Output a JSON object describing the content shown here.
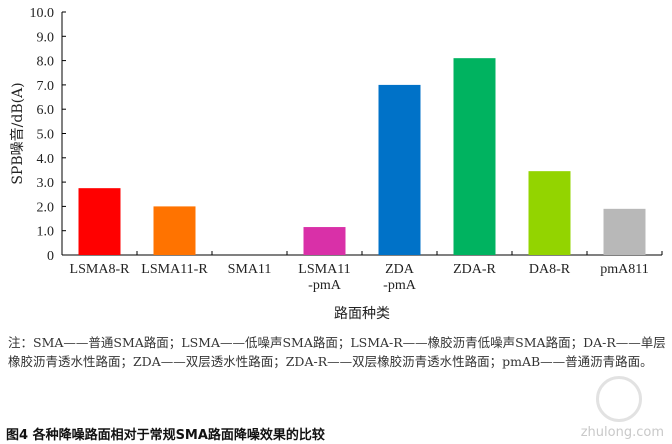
{
  "chart_data": {
    "type": "bar",
    "title": "",
    "xlabel": "路面种类",
    "ylabel": "SPB噪音/dB(A)",
    "ylim": [
      0,
      10
    ],
    "yticks": [
      "0",
      "1.0",
      "2.0",
      "3.0",
      "4.0",
      "5.0",
      "6.0",
      "7.0",
      "8.0",
      "9.0",
      "10.0"
    ],
    "categories": [
      [
        "LSMA8-R"
      ],
      [
        "LSMA11-R"
      ],
      [
        "SMA11"
      ],
      [
        "LSMA11",
        "-pmA"
      ],
      [
        "ZDA",
        "-pmA"
      ],
      [
        "ZDA-R"
      ],
      [
        "DA8-R"
      ],
      [
        "pmA811"
      ]
    ],
    "values": [
      2.75,
      2.0,
      0,
      1.15,
      7.0,
      8.1,
      3.45,
      1.9
    ],
    "colors": [
      "#ff0000",
      "#ff7300",
      "#ffffff",
      "#d930a8",
      "#0072c8",
      "#00b360",
      "#93d400",
      "#b8b8b8"
    ],
    "grid": false,
    "legend": "none"
  },
  "note": "注：SMA——普通SMA路面；LSMA——低噪声SMA路面；LSMA-R——橡胶沥青低噪声SMA路面；DA-R——单层橡胶沥青透水性路面；ZDA——双层透水性路面；ZDA-R——双层橡胶沥青透水性路面；pmAB——普通沥青路面。",
  "caption": "图4 各种降噪路面相对于常规SMA路面降噪效果的比较",
  "watermark": "zhulong.com"
}
